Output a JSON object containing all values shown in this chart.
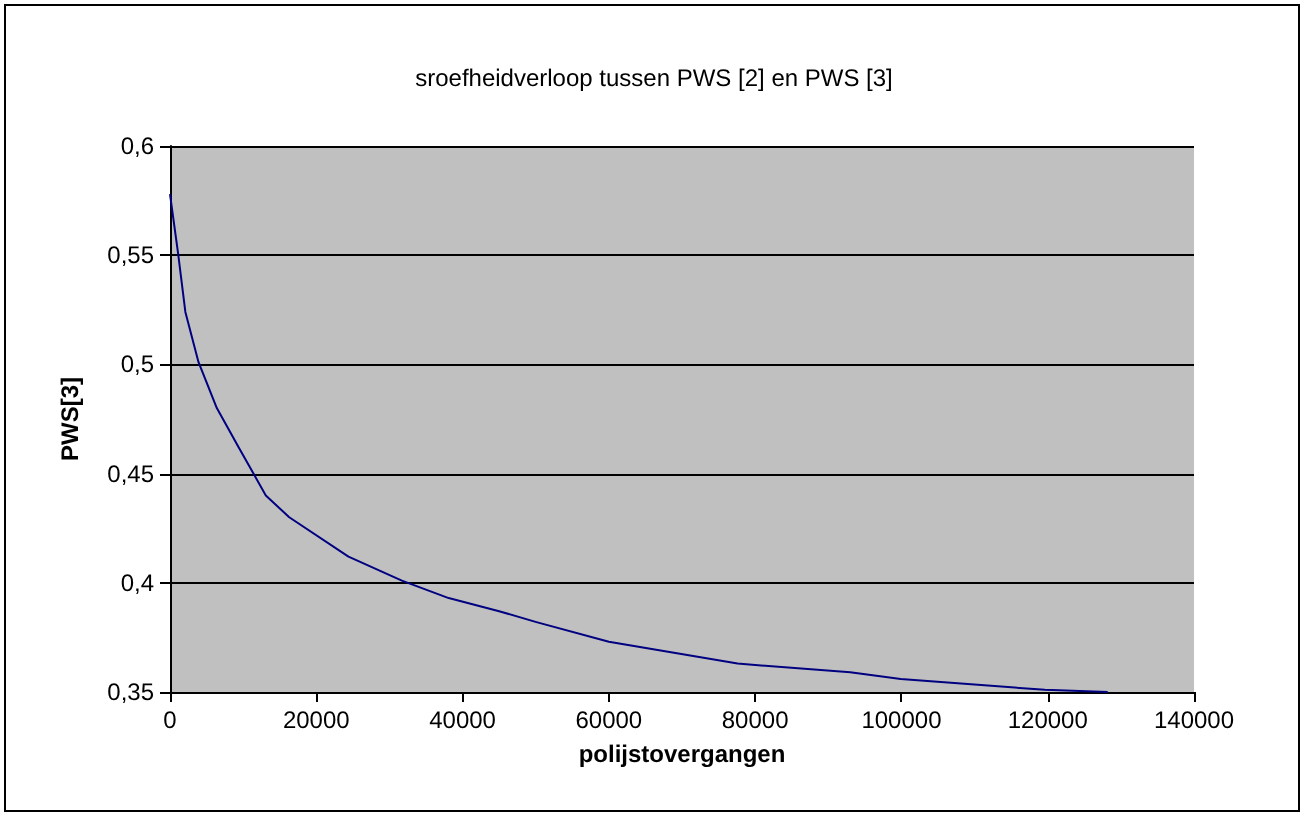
{
  "chart_data": {
    "type": "line",
    "title": "sroefheidverloop tussen PWS [2] en PWS [3]",
    "xlabel": "polijstovergangen",
    "ylabel": "PWS[3]",
    "x": [
      0,
      1100,
      2100,
      3900,
      6400,
      9400,
      13100,
      16300,
      24400,
      31700,
      38100,
      45000,
      50100,
      60000,
      77600,
      93000,
      99900,
      119600,
      128200
    ],
    "series": [
      {
        "color": "#000080",
        "values": [
          0.578,
          0.551,
          0.524,
          0.501,
          0.48,
          0.462,
          0.44,
          0.43,
          0.412,
          0.401,
          0.393,
          0.387,
          0.382,
          0.373,
          0.363,
          0.359,
          0.356,
          0.351,
          0.35
        ]
      }
    ],
    "xlim": [
      0,
      140000
    ],
    "xticks": [
      0,
      20000,
      40000,
      60000,
      80000,
      100000,
      120000,
      140000
    ],
    "ylim": [
      0.35,
      0.6
    ],
    "yticks": [
      {
        "value": 0.35,
        "label": "0,35"
      },
      {
        "value": 0.4,
        "label": "0,4"
      },
      {
        "value": 0.45,
        "label": "0,45"
      },
      {
        "value": 0.5,
        "label": "0,5"
      },
      {
        "value": 0.55,
        "label": "0,55"
      },
      {
        "value": 0.6,
        "label": "0,6"
      }
    ],
    "grid": "y",
    "marker": "none",
    "line_style": "solid"
  }
}
